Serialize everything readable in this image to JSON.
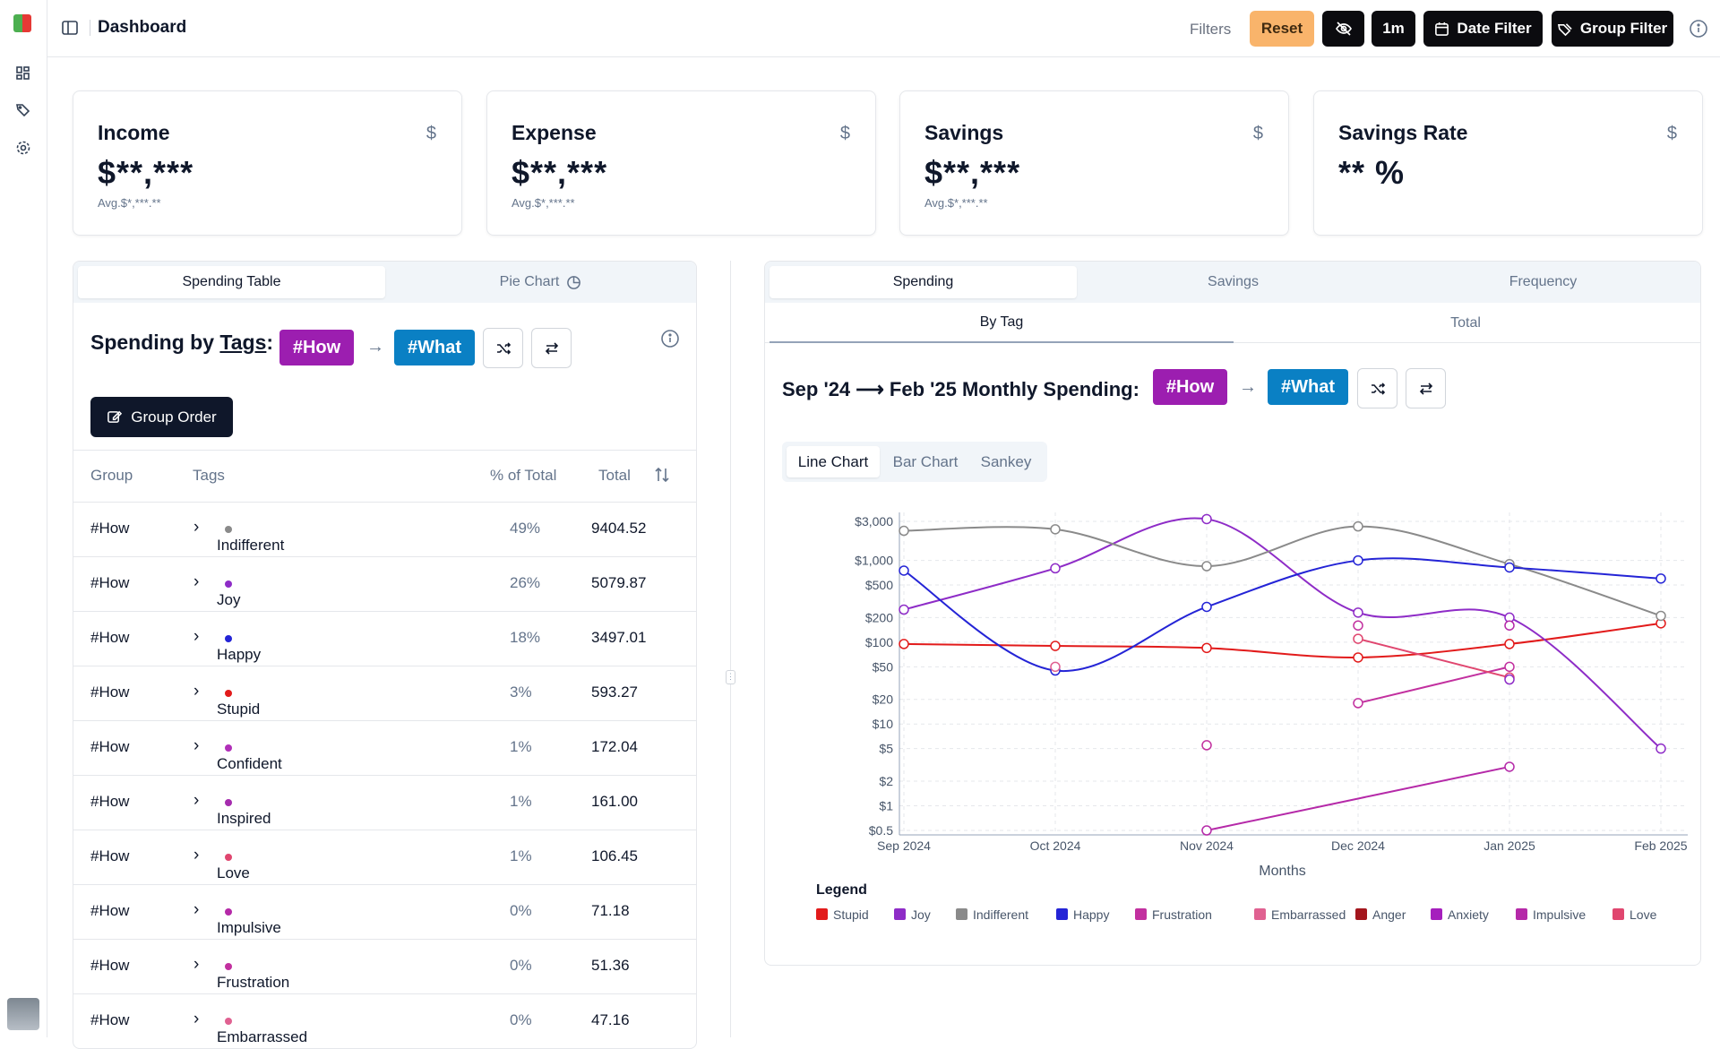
{
  "app": {
    "title": "Dashboard"
  },
  "toolbar": {
    "filters_label": "Filters",
    "reset_label": "Reset",
    "period_label": "1m",
    "date_filter_label": "Date Filter",
    "group_filter_label": "Group Filter"
  },
  "cards": [
    {
      "title": "Income",
      "symbol": "$",
      "value": "$**,***",
      "avg": "Avg.$*,***.**"
    },
    {
      "title": "Expense",
      "symbol": "$",
      "value": "$**,***",
      "avg": "Avg.$*,***.**"
    },
    {
      "title": "Savings",
      "symbol": "$",
      "value": "$**,***",
      "avg": "Avg.$*,***.**"
    },
    {
      "title": "Savings Rate",
      "symbol": "$",
      "value": "** %",
      "avg": ""
    }
  ],
  "left": {
    "tabs": [
      "Spending Table",
      "Pie Chart"
    ],
    "title_prefix": "Spending by ",
    "title_link": "Tags",
    "title_suffix": ":",
    "tag_from": "#How",
    "tag_to": "#What",
    "arrow": "→",
    "group_order_label": "Group Order",
    "headers": {
      "group": "Group",
      "tags": "Tags",
      "pct": "% of Total",
      "total": "Total"
    },
    "rows": [
      {
        "group": "#How",
        "tag": "Indifferent",
        "color": "#8a8a8a",
        "pct": "49%",
        "total": "9404.52"
      },
      {
        "group": "#How",
        "tag": "Joy",
        "color": "#8e2cc7",
        "pct": "26%",
        "total": "5079.87"
      },
      {
        "group": "#How",
        "tag": "Happy",
        "color": "#2424d6",
        "pct": "18%",
        "total": "3497.01"
      },
      {
        "group": "#How",
        "tag": "Stupid",
        "color": "#e21b1b",
        "pct": "3%",
        "total": "593.27"
      },
      {
        "group": "#How",
        "tag": "Confident",
        "color": "#b02fb8",
        "pct": "1%",
        "total": "172.04"
      },
      {
        "group": "#How",
        "tag": "Inspired",
        "color": "#a52cae",
        "pct": "1%",
        "total": "161.00"
      },
      {
        "group": "#How",
        "tag": "Love",
        "color": "#e0466f",
        "pct": "1%",
        "total": "106.45"
      },
      {
        "group": "#How",
        "tag": "Impulsive",
        "color": "#b529a8",
        "pct": "0%",
        "total": "71.18"
      },
      {
        "group": "#How",
        "tag": "Frustration",
        "color": "#c2309f",
        "pct": "0%",
        "total": "51.36"
      },
      {
        "group": "#How",
        "tag": "Embarrassed",
        "color": "#e06191",
        "pct": "0%",
        "total": "47.16"
      }
    ]
  },
  "right": {
    "tabs": [
      "Spending",
      "Savings",
      "Frequency"
    ],
    "subtabs": [
      "By Tag",
      "Total"
    ],
    "title": "Sep '24 ⟶ Feb '25  Monthly Spending:",
    "tag_from": "#How",
    "tag_to": "#What",
    "arrow": "→",
    "chart_tabs": [
      "Line Chart",
      "Bar Chart",
      "Sankey"
    ]
  },
  "colors": {
    "how": "#9c1eb0",
    "what": "#0a80c4"
  },
  "chart_data": {
    "type": "line",
    "xlabel": "Months",
    "ylabel": "",
    "yscale": "log",
    "ylim": [
      0.5,
      3000
    ],
    "categories": [
      "Sep 2024",
      "Oct 2024",
      "Nov 2024",
      "Dec 2024",
      "Jan 2025",
      "Feb 2025"
    ],
    "y_ticks": [
      0.5,
      1,
      2,
      5,
      10,
      20,
      50,
      100,
      200,
      500,
      1000,
      3000
    ],
    "y_tick_labels": [
      "$0.5",
      "$1",
      "$2",
      "$5",
      "$10",
      "$20",
      "$50",
      "$100",
      "$200",
      "$500",
      "$1,000",
      "$3,000"
    ],
    "grid": true,
    "legend_title": "Legend",
    "legend_position": "bottom",
    "series": [
      {
        "name": "Stupid",
        "color": "#e21b1b",
        "values": [
          95,
          90,
          85,
          65,
          95,
          170
        ]
      },
      {
        "name": "Joy",
        "color": "#8e2cc7",
        "values": [
          250,
          800,
          3200,
          230,
          200,
          5
        ]
      },
      {
        "name": "Indifferent",
        "color": "#8a8a8a",
        "values": [
          2300,
          2400,
          850,
          2600,
          900,
          210
        ]
      },
      {
        "name": "Happy",
        "color": "#2424d6",
        "values": [
          750,
          45,
          270,
          1000,
          820,
          600
        ]
      },
      {
        "name": "Frustration",
        "color": "#c2309f",
        "values": [
          null,
          null,
          null,
          18,
          50,
          null
        ]
      },
      {
        "name": "Embarrassed",
        "color": "#e06191",
        "values": [
          null,
          50,
          null,
          null,
          null,
          null
        ]
      },
      {
        "name": "Anger",
        "color": "#a3161d",
        "values": [
          null,
          null,
          null,
          null,
          null,
          null
        ]
      },
      {
        "name": "Anxiety",
        "color": "#a51fbd",
        "values": [
          null,
          null,
          null,
          null,
          null,
          null
        ]
      },
      {
        "name": "Impulsive",
        "color": "#b529a8",
        "values": [
          null,
          null,
          0.5,
          null,
          3,
          null
        ]
      },
      {
        "name": "Love",
        "color": "#e0466f",
        "values": [
          null,
          null,
          null,
          110,
          37,
          null
        ]
      }
    ],
    "extra_points": [
      {
        "x": "Nov 2024",
        "y": 5.5,
        "color": "#c2309f"
      },
      {
        "x": "Dec 2024",
        "y": 160,
        "color": "#c2309f"
      },
      {
        "x": "Jan 2025",
        "y": 160,
        "color": "#b529a8"
      },
      {
        "x": "Jan 2025",
        "y": 35,
        "color": "#8e2cc7"
      }
    ]
  }
}
